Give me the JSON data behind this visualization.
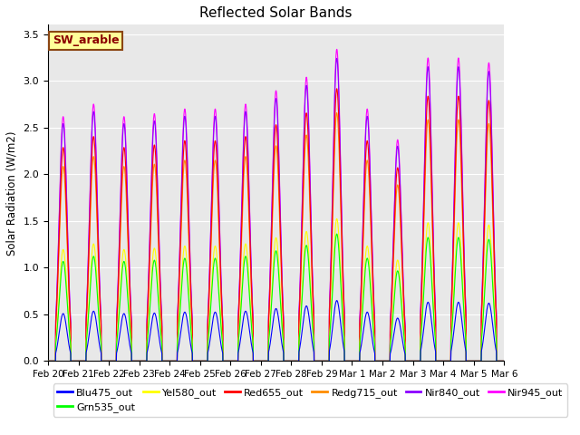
{
  "title": "Reflected Solar Bands",
  "ylabel": "Solar Radiation (W/m2)",
  "background_color": "#e8e8e8",
  "legend_label": "SW_arable",
  "legend_label_color": "#8B0000",
  "legend_label_bg": "#FFFF99",
  "series": [
    {
      "name": "Blu475_out",
      "color": "#0000FF",
      "zorder": 7,
      "scale": 0.2
    },
    {
      "name": "Grn535_out",
      "color": "#00FF00",
      "zorder": 6,
      "scale": 0.42
    },
    {
      "name": "Yel580_out",
      "color": "#FFFF00",
      "zorder": 5,
      "scale": 0.47
    },
    {
      "name": "Red655_out",
      "color": "#FF0000",
      "zorder": 4,
      "scale": 0.9
    },
    {
      "name": "Redg715_out",
      "color": "#FF8C00",
      "zorder": 3,
      "scale": 0.82
    },
    {
      "name": "Nir840_out",
      "color": "#8B00FF",
      "zorder": 2,
      "scale": 1.0
    },
    {
      "name": "Nir945_out",
      "color": "#FF00FF",
      "zorder": 1,
      "scale": 1.03
    }
  ],
  "num_days": 15,
  "points_per_day": 288,
  "ylim": [
    0,
    3.6
  ],
  "yticks": [
    0.0,
    0.5,
    1.0,
    1.5,
    2.0,
    2.5,
    3.0,
    3.5
  ],
  "nir840_peaks": [
    2.54,
    2.67,
    2.54,
    2.57,
    2.62,
    2.62,
    2.67,
    2.81,
    2.95,
    3.24,
    2.62,
    2.3,
    3.15,
    3.15,
    3.1
  ],
  "day_labels": [
    "Feb 20",
    "Feb 21",
    "Feb 22",
    "Feb 23",
    "Feb 24",
    "Feb 25",
    "Feb 26",
    "Feb 27",
    "Feb 28",
    "Feb 29",
    "Mar 1",
    "Mar 2",
    "Mar 3",
    "Mar 4",
    "Mar 5",
    "Mar 6"
  ],
  "title_fontsize": 11
}
